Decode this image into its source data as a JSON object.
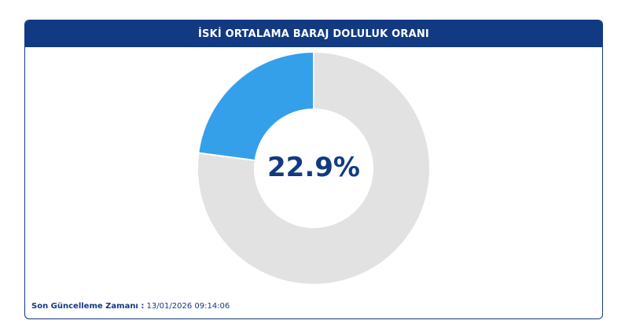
{
  "header": {
    "title": "İSKİ ORTALAMA BARAJ DOLULUK ORANI"
  },
  "chart_data": {
    "type": "pie",
    "style": "donut",
    "slices": [
      {
        "value": 22.9,
        "color": "#35a0ea"
      },
      {
        "value": 77.1,
        "color": "#e2e2e2"
      }
    ],
    "center_label": "22.9%"
  },
  "footer": {
    "label": "Son Güncelleme Zamanı :",
    "timestamp": "13/01/2026 09:14:06"
  },
  "colors": {
    "brand": "#123a83",
    "fill": "#35a0ea",
    "track": "#e2e2e2"
  }
}
